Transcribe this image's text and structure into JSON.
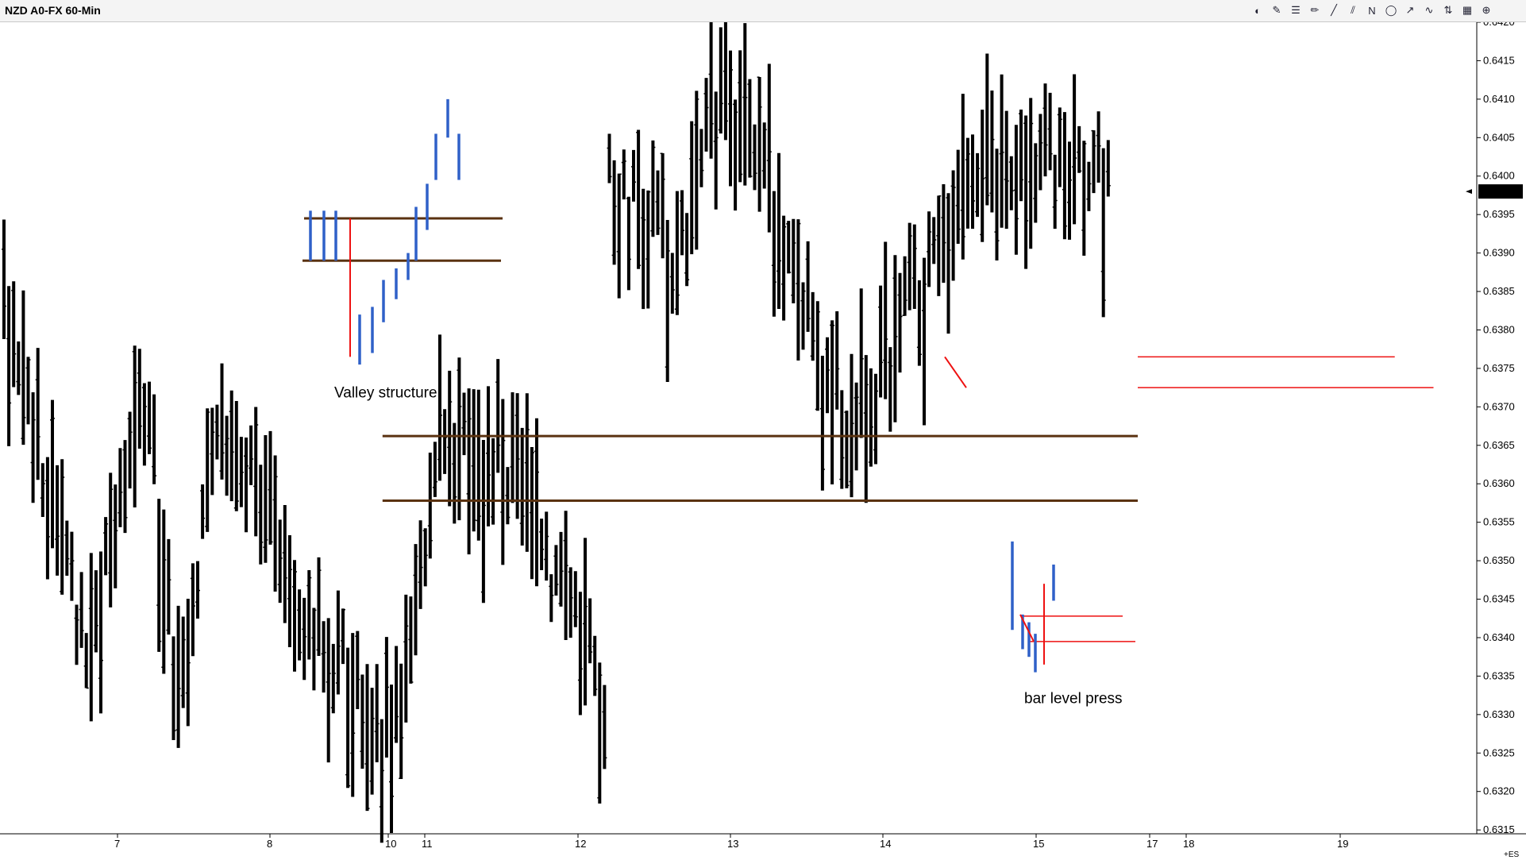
{
  "window": {
    "title": "NZD A0-FX 60-Min",
    "toolbar_icons": [
      "chart-style-icon",
      "color-icon",
      "drawing-icon",
      "pencil-icon",
      "trendline-icon",
      "parallel-lines-icon",
      "n-icon",
      "circle-icon",
      "line-tool-icon",
      "wave-icon",
      "arrow-icon",
      "menu-icon",
      "zoom-icon"
    ],
    "toolbar_glyphs": [
      "◐",
      "✎",
      "☰",
      "✏",
      "╱",
      "⫽",
      "N",
      "◯",
      "↗",
      "∿",
      "⇅",
      "▦",
      "⊕"
    ],
    "corner_label": "+ES",
    "side_marker": "0.\n1("
  },
  "chart_data": {
    "type": "ohlc",
    "symbol": "NZD A0-FX 60-Min",
    "ylim": [
      0.63145,
      0.642
    ],
    "price_ticks": [
      "0.6420",
      "0.6415",
      "0.6410",
      "0.6405",
      "0.6400",
      "0.6395",
      "0.6390",
      "0.6385",
      "0.6380",
      "0.6375",
      "0.6370",
      "0.6365",
      "0.6360",
      "0.6355",
      "0.6350",
      "0.6345",
      "0.6340",
      "0.6335",
      "0.6330",
      "0.6325",
      "0.6320",
      "0.6315"
    ],
    "current_price": "0.6398",
    "date_labels": [
      "7",
      "8",
      "10",
      "11",
      "12",
      "13",
      "14",
      "15",
      "17",
      "18",
      "19"
    ],
    "segments": [
      {
        "start": 0.6382,
        "bars": 18,
        "seed": 1,
        "end": 0.634
      },
      {
        "start": 0.634,
        "bars": 12,
        "seed": 2,
        "end": 0.637
      },
      {
        "start": 0.637,
        "bars": 6,
        "seed": 3,
        "end": 0.6335
      },
      {
        "start": 0.6335,
        "bars": 10,
        "seed": 4,
        "end": 0.6368
      },
      {
        "start": 0.6368,
        "bars": 8,
        "seed": 5,
        "end": 0.6358
      },
      {
        "start": 0.6358,
        "bars": 12,
        "seed": 6,
        "end": 0.634
      },
      {
        "start": 0.634,
        "bars": 4,
        "seed": 7,
        "end": 0.6335
      },
      {
        "start": 0.6335,
        "bars": 10,
        "seed": 8,
        "end": 0.6325
      },
      {
        "start": 0.6325,
        "bars": 11,
        "seed": 9,
        "end": 0.6365
      },
      {
        "start": 0.6365,
        "bars": 14,
        "seed": 10,
        "end": 0.6362
      },
      {
        "start": 0.6362,
        "bars": 20,
        "seed": 11,
        "end": 0.633
      },
      {
        "start": 0.64,
        "bars": 14,
        "seed": 12,
        "end": 0.639
      },
      {
        "start": 0.639,
        "bars": 10,
        "seed": 13,
        "end": 0.6412
      },
      {
        "start": 0.6412,
        "bars": 16,
        "seed": 14,
        "end": 0.6385
      },
      {
        "start": 0.6385,
        "bars": 10,
        "seed": 15,
        "end": 0.6365
      },
      {
        "start": 0.6365,
        "bars": 14,
        "seed": 16,
        "end": 0.6385
      },
      {
        "start": 0.6385,
        "bars": 10,
        "seed": 17,
        "end": 0.64
      },
      {
        "start": 0.64,
        "bars": 16,
        "seed": 18,
        "end": 0.6402
      },
      {
        "start": 0.6402,
        "bars": 14,
        "seed": 19,
        "end": 0.6398
      }
    ],
    "horizontal_lines": [
      {
        "price": 0.63662,
        "color": "#5a3210",
        "from_bar": 38,
        "to_bar": 300
      },
      {
        "price": 0.63578,
        "color": "#5a3210",
        "from_bar": 38,
        "to_bar": 300
      },
      {
        "price": 0.63765,
        "color": "#ee1111",
        "from_bar": 247,
        "to_bar": 300
      },
      {
        "price": 0.63725,
        "color": "#ee1111",
        "from_bar": 255,
        "to_bar": 305
      }
    ],
    "annotations": [
      {
        "text": "Valley structure",
        "price": 0.63712,
        "bar": 87
      },
      {
        "text": "bar level press",
        "price": 0.63315,
        "bar": 270
      }
    ],
    "illustrations": {
      "valley": {
        "support_high": 0.63945,
        "support_low": 0.6389,
        "blue_bars": [
          {
            "hi": 0.63955,
            "lo": 0.6389
          },
          {
            "hi": 0.63955,
            "lo": 0.6389
          },
          {
            "hi": 0.63955,
            "lo": 0.6389
          },
          {
            "hi": 0.6382,
            "lo": 0.63755
          },
          {
            "hi": 0.6383,
            "lo": 0.6377
          },
          {
            "hi": 0.63865,
            "lo": 0.6381
          },
          {
            "hi": 0.6388,
            "lo": 0.6384
          },
          {
            "hi": 0.639,
            "lo": 0.63865
          },
          {
            "hi": 0.6396,
            "lo": 0.6389
          },
          {
            "hi": 0.6399,
            "lo": 0.6393
          },
          {
            "hi": 0.64055,
            "lo": 0.63995
          },
          {
            "hi": 0.641,
            "lo": 0.6405
          },
          {
            "hi": 0.64055,
            "lo": 0.63995
          }
        ],
        "red_bar": {
          "hi": 0.63945,
          "lo": 0.63765
        }
      },
      "press": {
        "line_high": 0.63428,
        "line_low": 0.63395,
        "blue_bars": [
          {
            "hi": 0.63525,
            "lo": 0.6341
          },
          {
            "hi": 0.6343,
            "lo": 0.63385
          },
          {
            "hi": 0.6342,
            "lo": 0.63375
          },
          {
            "hi": 0.63405,
            "lo": 0.63355
          },
          {
            "hi": 0.63495,
            "lo": 0.63448
          }
        ],
        "red_bar": {
          "hi": 0.6347,
          "lo": 0.63365
        }
      }
    }
  }
}
